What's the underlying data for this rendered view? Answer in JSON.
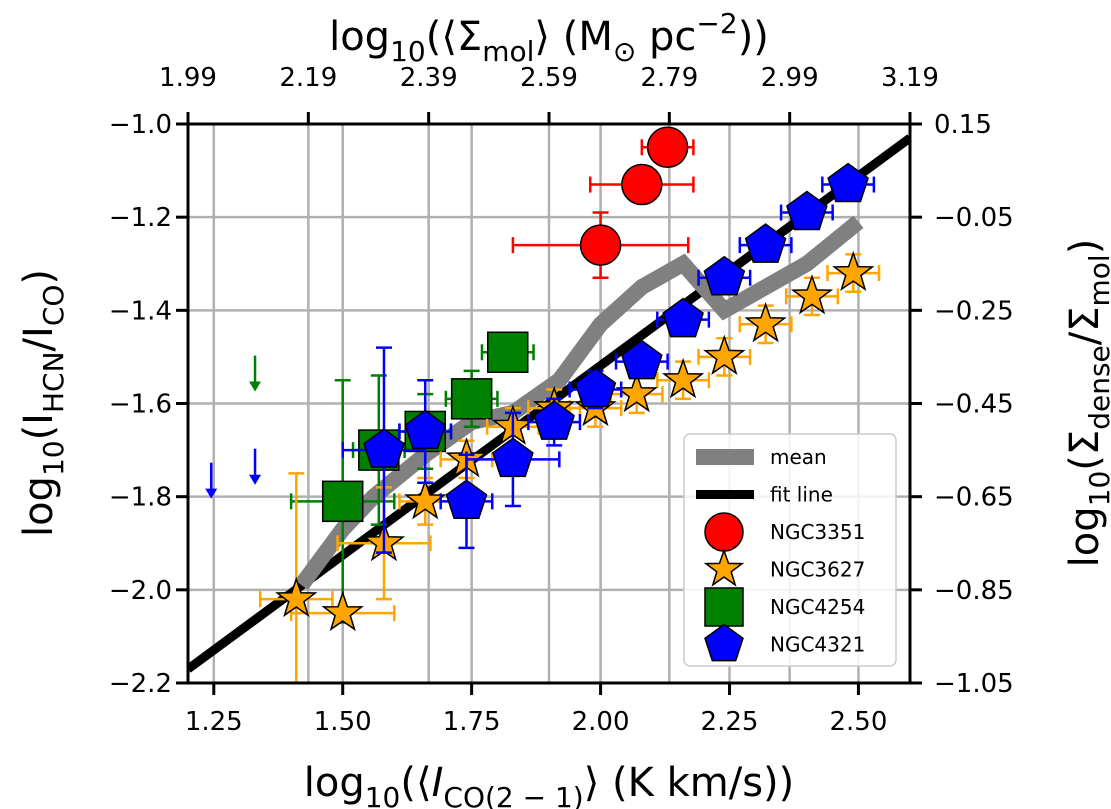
{
  "chart_data": {
    "type": "scatter",
    "xlim": [
      1.2,
      2.6
    ],
    "ylim": [
      -2.2,
      -1.0
    ],
    "x_ticks": [
      "1.25",
      "1.50",
      "1.75",
      "2.00",
      "2.25",
      "2.50"
    ],
    "y_ticks": [
      "−2.2",
      "−2.0",
      "−1.8",
      "−1.6",
      "−1.4",
      "−1.2",
      "−1.0"
    ],
    "top_ticks": [
      "1.99",
      "2.19",
      "2.39",
      "2.59",
      "2.79",
      "2.99",
      "3.19"
    ],
    "right_ticks": [
      "−1.05",
      "−0.85",
      "−0.65",
      "−0.45",
      "−0.25",
      "−0.05",
      "0.15"
    ],
    "grid": true,
    "legend_position": "lower right",
    "xlabel": {
      "prefix": "log",
      "sub10": "10",
      "text": "(⟨",
      "italic": "I",
      "sub": "CO(2 − 1)",
      "suffix": "⟩ (K km/s))"
    },
    "ylabel": {
      "prefix": "log",
      "sub10": "10",
      "text": "(I",
      "sub": "HCN",
      "mid": "/I",
      "sub2": "CO",
      "suffix": ")"
    },
    "top_label": {
      "prefix": "log",
      "sub10": "10",
      "text": "(⟨Σ",
      "sub": "mol",
      "mid": "⟩ (M",
      "sub2": "⊙",
      "suffix": " pc",
      "sup": "−2",
      "end": "))"
    },
    "right_label": {
      "prefix": "log",
      "sub10": "10",
      "text": "(Σ",
      "sub": "dense",
      "mid": "/Σ",
      "sub2": "mol",
      "suffix": ")"
    },
    "mean_line": {
      "name": "mean",
      "color": "#808080",
      "x": [
        1.42,
        1.5,
        1.56,
        1.66,
        1.75,
        1.83,
        1.92,
        2.0,
        2.08,
        2.16,
        2.24,
        2.32,
        2.4,
        2.5
      ],
      "y": [
        -1.99,
        -1.87,
        -1.8,
        -1.71,
        -1.64,
        -1.62,
        -1.55,
        -1.43,
        -1.35,
        -1.3,
        -1.4,
        -1.35,
        -1.3,
        -1.21
      ]
    },
    "fit_line": {
      "name": "fit line",
      "color": "#000000",
      "x": [
        1.2,
        2.6
      ],
      "y": [
        -2.17,
        -1.03
      ]
    },
    "series": [
      {
        "name": "NGC3351",
        "marker": "circle",
        "color": "#ff0000",
        "ecolor": "#ff0000",
        "points": [
          {
            "x": 2.13,
            "y": -1.05,
            "xerr": [
              0.05,
              0.05
            ],
            "yerr": [
              0.0,
              0.0
            ]
          },
          {
            "x": 2.08,
            "y": -1.13,
            "xerr": [
              0.1,
              0.1
            ],
            "yerr": [
              0.0,
              0.0
            ]
          },
          {
            "x": 2.0,
            "y": -1.26,
            "xerr": [
              0.17,
              0.17
            ],
            "yerr": [
              0.07,
              0.07
            ]
          }
        ]
      },
      {
        "name": "NGC3627",
        "marker": "star",
        "color": "#ffa500",
        "ecolor": "#ffa500",
        "points": [
          {
            "x": 1.41,
            "y": -2.02,
            "xerr": [
              0.07,
              0.07
            ],
            "yerr": [
              0.27,
              0.27
            ]
          },
          {
            "x": 1.5,
            "y": -2.05,
            "xerr": [
              0.1,
              0.1
            ],
            "yerr": [
              0.0,
              0.0
            ]
          },
          {
            "x": 1.58,
            "y": -1.9,
            "xerr": [
              0.09,
              0.09
            ],
            "yerr": [
              0.12,
              0.12
            ]
          },
          {
            "x": 1.66,
            "y": -1.81,
            "xerr": [
              0.05,
              0.05
            ],
            "yerr": [
              0.05,
              0.05
            ]
          },
          {
            "x": 1.74,
            "y": -1.72,
            "xerr": [
              0.05,
              0.05
            ],
            "yerr": [
              0.04,
              0.04
            ]
          },
          {
            "x": 1.83,
            "y": -1.65,
            "xerr": [
              0.05,
              0.05
            ],
            "yerr": [
              0.04,
              0.04
            ]
          },
          {
            "x": 1.91,
            "y": -1.61,
            "xerr": [
              0.05,
              0.05
            ],
            "yerr": [
              0.04,
              0.04
            ]
          },
          {
            "x": 1.99,
            "y": -1.61,
            "xerr": [
              0.05,
              0.05
            ],
            "yerr": [
              0.04,
              0.04
            ]
          },
          {
            "x": 2.07,
            "y": -1.58,
            "xerr": [
              0.05,
              0.05
            ],
            "yerr": [
              0.04,
              0.04
            ]
          },
          {
            "x": 2.16,
            "y": -1.55,
            "xerr": [
              0.05,
              0.05
            ],
            "yerr": [
              0.04,
              0.04
            ]
          },
          {
            "x": 2.24,
            "y": -1.5,
            "xerr": [
              0.05,
              0.05
            ],
            "yerr": [
              0.04,
              0.04
            ]
          },
          {
            "x": 2.32,
            "y": -1.43,
            "xerr": [
              0.05,
              0.05
            ],
            "yerr": [
              0.04,
              0.04
            ]
          },
          {
            "x": 2.41,
            "y": -1.37,
            "xerr": [
              0.05,
              0.05
            ],
            "yerr": [
              0.04,
              0.04
            ]
          },
          {
            "x": 2.49,
            "y": -1.32,
            "xerr": [
              0.05,
              0.05
            ],
            "yerr": [
              0.04,
              0.04
            ]
          }
        ]
      },
      {
        "name": "NGC4254",
        "marker": "square",
        "color": "#008000",
        "ecolor": "#008000",
        "points": [
          {
            "x": 1.5,
            "y": -1.81,
            "xerr": [
              0.1,
              0.1
            ],
            "yerr": [
              0.26,
              0.26
            ]
          },
          {
            "x": 1.57,
            "y": -1.7,
            "xerr": [
              0.05,
              0.05
            ],
            "yerr": [
              0.16,
              0.16
            ]
          },
          {
            "x": 1.66,
            "y": -1.66,
            "xerr": [
              0.05,
              0.05
            ],
            "yerr": [
              0.08,
              0.08
            ]
          },
          {
            "x": 1.75,
            "y": -1.59,
            "xerr": [
              0.05,
              0.05
            ],
            "yerr": [
              0.06,
              0.06
            ]
          },
          {
            "x": 1.82,
            "y": -1.49,
            "xerr": [
              0.05,
              0.05
            ],
            "yerr": [
              0.04,
              0.04
            ]
          }
        ]
      },
      {
        "name": "NGC4321",
        "marker": "pentagon",
        "color": "#0000ff",
        "ecolor": "#0000ff",
        "points": [
          {
            "x": 1.58,
            "y": -1.7,
            "xerr": [
              0.08,
              0.08
            ],
            "yerr": [
              0.22,
              0.22
            ]
          },
          {
            "x": 1.66,
            "y": -1.66,
            "xerr": [
              0.05,
              0.05
            ],
            "yerr": [
              0.11,
              0.11
            ]
          },
          {
            "x": 1.74,
            "y": -1.81,
            "xerr": [
              0.05,
              0.05
            ],
            "yerr": [
              0.1,
              0.1
            ]
          },
          {
            "x": 1.83,
            "y": -1.72,
            "xerr": [
              0.09,
              0.09
            ],
            "yerr": [
              0.1,
              0.1
            ]
          },
          {
            "x": 1.91,
            "y": -1.64,
            "xerr": [
              0.05,
              0.05
            ],
            "yerr": [
              0.05,
              0.05
            ]
          },
          {
            "x": 1.99,
            "y": -1.57,
            "xerr": [
              0.05,
              0.05
            ],
            "yerr": [
              0.04,
              0.04
            ]
          },
          {
            "x": 2.08,
            "y": -1.51,
            "xerr": [
              0.05,
              0.05
            ],
            "yerr": [
              0.03,
              0.03
            ]
          },
          {
            "x": 2.16,
            "y": -1.42,
            "xerr": [
              0.05,
              0.05
            ],
            "yerr": [
              0.03,
              0.03
            ]
          },
          {
            "x": 2.24,
            "y": -1.33,
            "xerr": [
              0.05,
              0.05
            ],
            "yerr": [
              0.03,
              0.03
            ]
          },
          {
            "x": 2.32,
            "y": -1.26,
            "xerr": [
              0.05,
              0.05
            ],
            "yerr": [
              0.03,
              0.03
            ]
          },
          {
            "x": 2.4,
            "y": -1.19,
            "xerr": [
              0.05,
              0.05
            ],
            "yerr": [
              0.03,
              0.03
            ]
          },
          {
            "x": 2.48,
            "y": -1.13,
            "xerr": [
              0.05,
              0.05
            ],
            "yerr": [
              0.03,
              0.03
            ]
          }
        ]
      }
    ],
    "upper_limits": [
      {
        "series": "NGC4254",
        "color": "#008000",
        "x": 1.33,
        "y": -1.57
      },
      {
        "series": "NGC4321",
        "color": "#0000ff",
        "x": 1.33,
        "y": -1.77
      },
      {
        "series": "NGC4321",
        "color": "#0000ff",
        "x": 1.245,
        "y": -1.8
      }
    ]
  }
}
